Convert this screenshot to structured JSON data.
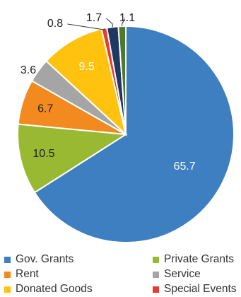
{
  "chart_data": {
    "type": "pie",
    "title": "",
    "start": "top, clockwise",
    "series": [
      {
        "name": "Gov. Grants",
        "value": 65.7,
        "label": "65.7",
        "color": "#3e7fc1"
      },
      {
        "name": "Private Grants",
        "value": 10.5,
        "label": "10.5",
        "color": "#99b932"
      },
      {
        "name": "Rent",
        "value": 6.7,
        "label": "6.7",
        "color": "#f28a1f"
      },
      {
        "name": "Service",
        "value": 3.6,
        "label": "3.6",
        "color": "#a5a5a5"
      },
      {
        "name": "Donated Goods",
        "value": 9.5,
        "label": "9.5",
        "color": "#ffc20e"
      },
      {
        "name": "Special Events",
        "value": 0.8,
        "label": "0.8",
        "color": "#e63b2e"
      },
      {
        "name": "",
        "value": 1.7,
        "label": "1.7",
        "color": "#1f3864"
      },
      {
        "name": "",
        "value": 1.1,
        "label": "1.1",
        "color": "#4c7a2a"
      }
    ],
    "legend": {
      "placement": "bottom",
      "entries": [
        "Gov. Grants",
        "Private Grants",
        "Rent",
        "Service",
        "Donated Goods",
        "Special Events"
      ]
    }
  }
}
